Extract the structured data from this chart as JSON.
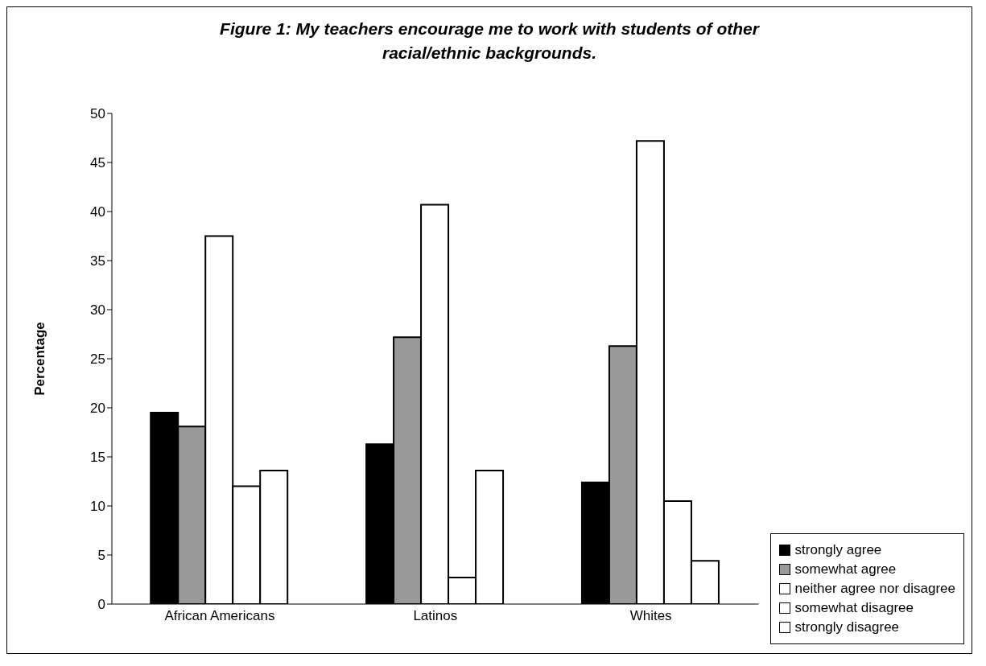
{
  "chart_data": {
    "type": "bar",
    "title": "Figure 1: My teachers encourage me to work with students of other racial/ethnic backgrounds.",
    "ylabel": "Percentage",
    "categories": [
      "African Americans",
      "Latinos",
      "Whites"
    ],
    "series": [
      {
        "name": "strongly agree",
        "color": "#000000",
        "values": [
          19.5,
          16.3,
          12.4
        ]
      },
      {
        "name": "somewhat agree",
        "color": "#999999",
        "values": [
          18.1,
          27.2,
          26.3
        ]
      },
      {
        "name": "neither agree nor disagree",
        "color": "#ffffff",
        "values": [
          37.5,
          40.7,
          47.2
        ]
      },
      {
        "name": "somewhat disagree",
        "color": "#ffffff",
        "values": [
          12.0,
          2.7,
          10.5
        ]
      },
      {
        "name": "strongly disagree",
        "color": "#ffffff",
        "values": [
          13.6,
          13.6,
          4.4
        ]
      }
    ],
    "ylim": [
      0,
      50
    ],
    "yticks": [
      0,
      5,
      10,
      15,
      20,
      25,
      30,
      35,
      40,
      45,
      50
    ],
    "legend": "bottom right"
  }
}
